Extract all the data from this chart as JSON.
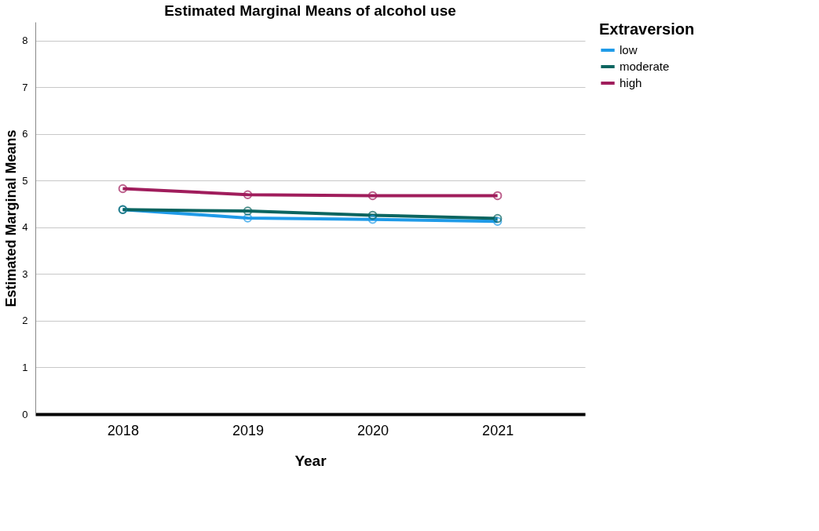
{
  "chart_data": {
    "type": "line",
    "title": "Estimated Marginal Means of alcohol use",
    "xlabel": "Year",
    "ylabel": "Estimated Marginal Means",
    "legend_title": "Extraversion",
    "categories": [
      "2018",
      "2019",
      "2020",
      "2021"
    ],
    "series": [
      {
        "name": "low",
        "color": "#1f9be8",
        "values": [
          4.38,
          4.2,
          4.17,
          4.13
        ]
      },
      {
        "name": "moderate",
        "color": "#0b6560",
        "values": [
          4.38,
          4.35,
          4.26,
          4.19
        ]
      },
      {
        "name": "high",
        "color": "#a01d5c",
        "values": [
          4.83,
          4.7,
          4.68,
          4.68
        ]
      }
    ],
    "ylim": [
      0,
      8.4
    ],
    "yticks": [
      0,
      1,
      2,
      3,
      4,
      5,
      6,
      7,
      8
    ],
    "grid": "y",
    "legend": "top right",
    "marker": "circle"
  }
}
